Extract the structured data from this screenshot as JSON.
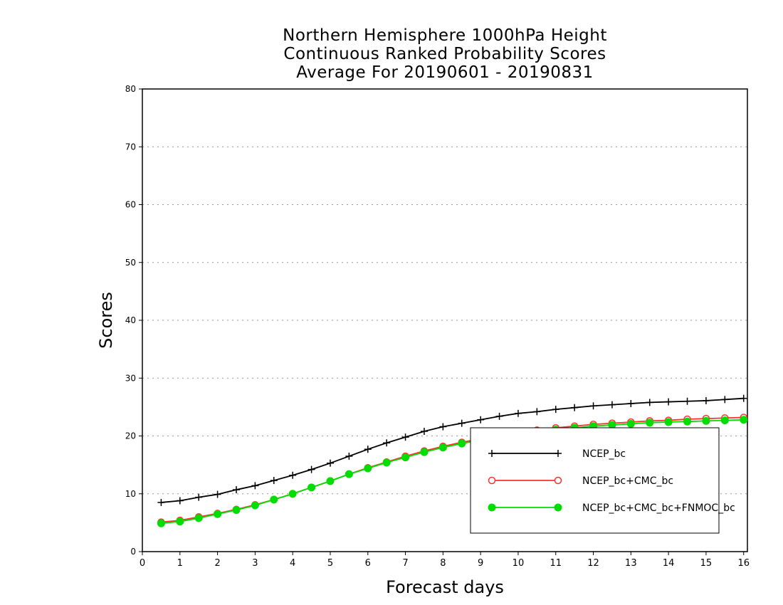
{
  "chart_data": {
    "type": "line",
    "title": [
      "Northern Hemisphere 1000hPa Height",
      "Continuous Ranked Probability Scores",
      "Average For 20190601 - 20190831"
    ],
    "xlabel": "Forecast days",
    "ylabel": "Scores",
    "xlim": [
      0,
      16.1
    ],
    "ylim": [
      0,
      80
    ],
    "xticks": [
      0,
      1,
      2,
      3,
      4,
      5,
      6,
      7,
      8,
      9,
      10,
      11,
      12,
      13,
      14,
      15,
      16
    ],
    "yticks": [
      0,
      10,
      20,
      30,
      40,
      50,
      60,
      70,
      80
    ],
    "grid": "horizontal dotted",
    "legend_position": "lower-right",
    "x": [
      0.5,
      1,
      1.5,
      2,
      2.5,
      3,
      3.5,
      4,
      4.5,
      5,
      5.5,
      6,
      6.5,
      7,
      7.5,
      8,
      8.5,
      9,
      9.5,
      10,
      10.5,
      11,
      11.5,
      12,
      12.5,
      13,
      13.5,
      14,
      14.5,
      15,
      15.5,
      16
    ],
    "series": [
      {
        "name": "NCEP_bc",
        "color": "#000000",
        "marker": "plus",
        "values": [
          8.5,
          8.8,
          9.4,
          9.9,
          10.7,
          11.4,
          12.3,
          13.2,
          14.2,
          15.3,
          16.5,
          17.7,
          18.8,
          19.8,
          20.8,
          21.6,
          22.2,
          22.8,
          23.4,
          23.9,
          24.2,
          24.6,
          24.9,
          25.2,
          25.4,
          25.6,
          25.8,
          25.9,
          26.0,
          26.1,
          26.3,
          26.5
        ]
      },
      {
        "name": "NCEP_bc+CMC_bc",
        "color": "#ff3030",
        "marker": "open-circle",
        "values": [
          5.1,
          5.4,
          6.0,
          6.6,
          7.3,
          8.1,
          9.0,
          10.0,
          11.1,
          12.2,
          13.4,
          14.5,
          15.5,
          16.5,
          17.4,
          18.2,
          18.9,
          19.5,
          20.1,
          20.6,
          21.0,
          21.4,
          21.7,
          22.0,
          22.2,
          22.4,
          22.6,
          22.7,
          22.9,
          23.0,
          23.1,
          23.2
        ]
      },
      {
        "name": "NCEP_bc+CMC_bc+FNMOC_bc",
        "color": "#00dd00",
        "marker": "filled-circle",
        "values": [
          4.9,
          5.2,
          5.8,
          6.5,
          7.2,
          8.0,
          9.0,
          10.0,
          11.1,
          12.2,
          13.4,
          14.4,
          15.4,
          16.3,
          17.2,
          18.0,
          18.7,
          19.3,
          19.9,
          20.4,
          20.8,
          21.1,
          21.4,
          21.7,
          21.9,
          22.1,
          22.3,
          22.4,
          22.5,
          22.6,
          22.7,
          22.8
        ]
      }
    ]
  }
}
